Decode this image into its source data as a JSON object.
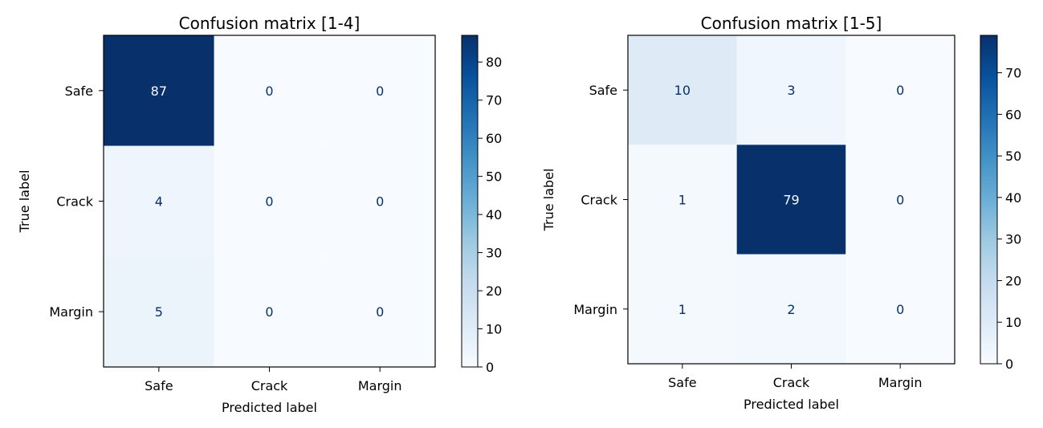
{
  "chart_data": [
    {
      "type": "heatmap",
      "title": "Confusion matrix [1-4]",
      "xlabel": "Predicted label",
      "ylabel": "True label",
      "x_categories": [
        "Safe",
        "Crack",
        "Margin"
      ],
      "y_categories": [
        "Safe",
        "Crack",
        "Margin"
      ],
      "values": [
        [
          87,
          0,
          0
        ],
        [
          4,
          0,
          0
        ],
        [
          5,
          0,
          0
        ]
      ],
      "colormap": "Blues",
      "colorbar": {
        "min": 0,
        "max": 87,
        "ticks": [
          0,
          10,
          20,
          30,
          40,
          50,
          60,
          70,
          80
        ]
      },
      "colors": {
        "low": "#f7fbff",
        "high": "#08306b",
        "dark_text": "#08306b",
        "light_text": "#f7fbff"
      }
    },
    {
      "type": "heatmap",
      "title": "Confusion matrix [1-5]",
      "xlabel": "Predicted label",
      "ylabel": "True label",
      "x_categories": [
        "Safe",
        "Crack",
        "Margin"
      ],
      "y_categories": [
        "Safe",
        "Crack",
        "Margin"
      ],
      "values": [
        [
          10,
          3,
          0
        ],
        [
          1,
          79,
          0
        ],
        [
          1,
          2,
          0
        ]
      ],
      "colormap": "Blues",
      "colorbar": {
        "min": 0,
        "max": 79,
        "ticks": [
          0,
          10,
          20,
          30,
          40,
          50,
          60,
          70
        ]
      },
      "colors": {
        "low": "#f7fbff",
        "high": "#08306b",
        "dark_text": "#08306b",
        "light_text": "#f7fbff"
      }
    }
  ]
}
